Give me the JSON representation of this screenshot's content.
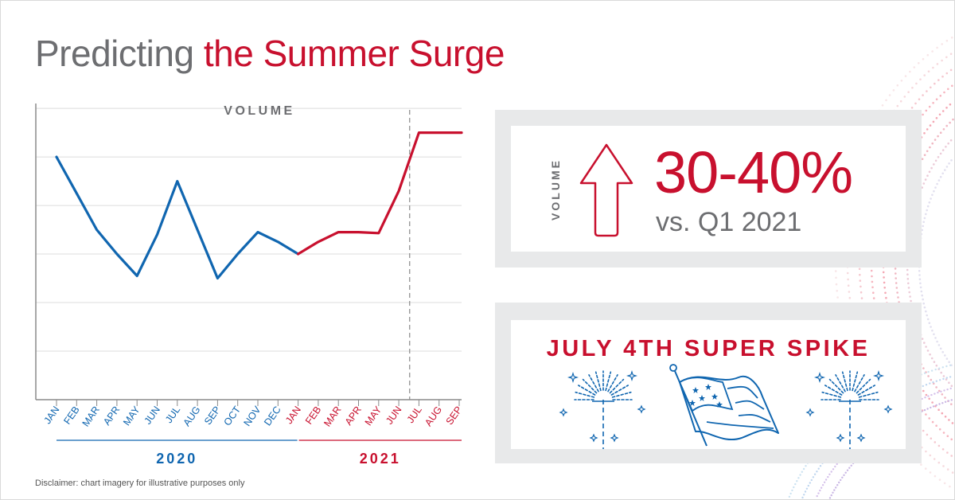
{
  "title": {
    "lead": "Predicting ",
    "accent": "the Summer Surge"
  },
  "chart_data": {
    "type": "line",
    "title": "VOLUME",
    "categories": [
      "JAN",
      "FEB",
      "MAR",
      "APR",
      "MAY",
      "JUN",
      "JUL",
      "AUG",
      "SEP",
      "OCT",
      "NOV",
      "DEC",
      "JAN",
      "FEB",
      "MAR",
      "APR",
      "MAY",
      "JUN",
      "JUL",
      "AUG",
      "SEP"
    ],
    "groups": [
      {
        "name": "2020",
        "start": 0,
        "end": 11
      },
      {
        "name": "2021",
        "start": 12,
        "end": 20
      }
    ],
    "series": [
      {
        "color": "#1066b0",
        "x": [
          0,
          1,
          2,
          3,
          4,
          5,
          6,
          7,
          8,
          9,
          10,
          11,
          12
        ],
        "values": [
          5.0,
          4.25,
          3.5,
          3.0,
          2.55,
          3.4,
          4.5,
          3.5,
          2.5,
          3.0,
          3.45,
          3.25,
          3.0
        ]
      },
      {
        "color": "#c8102e",
        "x": [
          12,
          13,
          14,
          15,
          16,
          17,
          18,
          19,
          20
        ],
        "values": [
          3.0,
          3.25,
          3.45,
          3.45,
          3.43,
          4.3,
          5.5,
          5.5,
          5.5
        ]
      }
    ],
    "ylim": [
      0,
      6.1
    ],
    "grid": true,
    "divider_after_index": 17
  },
  "callout": {
    "side_label": "VOLUME",
    "value": "30-40%",
    "compare": "vs. Q1 2021"
  },
  "spike": {
    "title": "JULY 4TH SUPER SPIKE",
    "icons": [
      "firework-icon",
      "american-flag-icon",
      "firework-icon"
    ]
  },
  "disclaimer": "Disclaimer: chart imagery for illustrative purposes only",
  "colors": {
    "red": "#c8102e",
    "blue": "#1066b0",
    "gray": "#6d6e71",
    "panel": "#e8e9ea"
  }
}
